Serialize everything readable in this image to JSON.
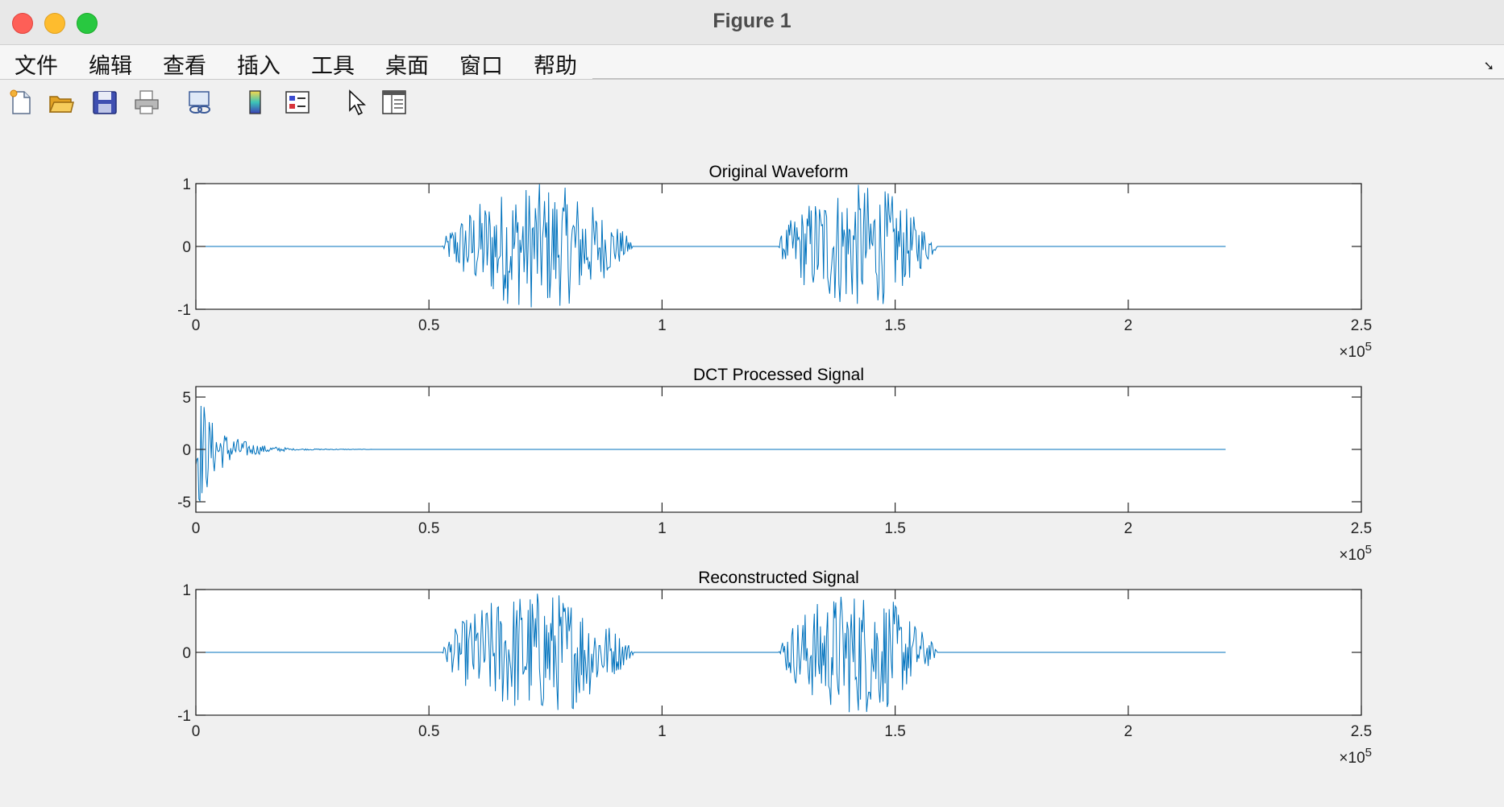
{
  "window": {
    "title": "Figure 1"
  },
  "menu": [
    "文件",
    "编辑",
    "查看",
    "插入",
    "工具",
    "桌面",
    "窗口",
    "帮助"
  ],
  "toolbar": {
    "icons": [
      "new-figure-icon",
      "open-file-icon",
      "save-icon",
      "print-icon",
      "link-plot-icon",
      "colorbar-icon",
      "legend-icon",
      "pointer-icon",
      "property-inspector-icon"
    ]
  },
  "colors": {
    "line": "#0072bd",
    "axes": "#262626",
    "background": "#f0f0f0"
  },
  "chart_data": [
    {
      "type": "line",
      "title": "Original Waveform",
      "xlabel": "",
      "ylabel": "",
      "xlim": [
        0,
        250000
      ],
      "ylim": [
        -1,
        1
      ],
      "xticks": [
        "0",
        "0.5",
        "1",
        "1.5",
        "2",
        "2.5"
      ],
      "yticks": [
        "-1",
        "0",
        "1"
      ],
      "exponent_base": "×10",
      "exponent_power": "5",
      "signal_length": 221000,
      "bursts": [
        {
          "start": 53000,
          "end": 100000,
          "amplitude": 1.0
        },
        {
          "start": 125000,
          "end": 164000,
          "amplitude": 1.0
        }
      ]
    },
    {
      "type": "line",
      "title": "DCT Processed Signal",
      "xlabel": "",
      "ylabel": "",
      "xlim": [
        0,
        250000
      ],
      "ylim": [
        -6,
        6
      ],
      "xticks": [
        "0",
        "0.5",
        "1",
        "1.5",
        "2",
        "2.5"
      ],
      "yticks": [
        "-5",
        "0",
        "5"
      ],
      "exponent_base": "×10",
      "exponent_power": "5",
      "signal_length": 221000,
      "bursts": [
        {
          "start": 0,
          "end": 20000,
          "amplitude": 6.0
        }
      ]
    },
    {
      "type": "line",
      "title": "Reconstructed Signal",
      "xlabel": "",
      "ylabel": "",
      "xlim": [
        0,
        250000
      ],
      "ylim": [
        -1,
        1
      ],
      "xticks": [
        "0",
        "0.5",
        "1",
        "1.5",
        "2",
        "2.5"
      ],
      "yticks": [
        "-1",
        "0",
        "1"
      ],
      "exponent_base": "×10",
      "exponent_power": "5",
      "signal_length": 221000,
      "bursts": [
        {
          "start": 53000,
          "end": 100000,
          "amplitude": 1.0
        },
        {
          "start": 125000,
          "end": 164000,
          "amplitude": 1.0
        }
      ]
    }
  ]
}
